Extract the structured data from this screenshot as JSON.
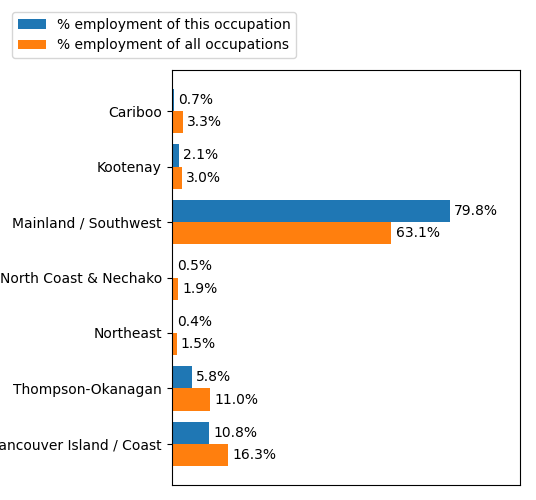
{
  "chart_data": {
    "type": "bar",
    "orientation": "horizontal",
    "categories": [
      "Cariboo",
      "Kootenay",
      "Mainland / Southwest",
      "North Coast & Nechako",
      "Northeast",
      "Thompson-Okanagan",
      "Vancouver Island / Coast"
    ],
    "series": [
      {
        "name": "% employment of this occupation",
        "values": [
          0.7,
          2.1,
          79.8,
          0.5,
          0.4,
          5.8,
          10.8
        ],
        "value_labels": [
          "0.7%",
          "2.1%",
          "79.8%",
          "0.5%",
          "0.4%",
          "5.8%",
          "10.8%"
        ]
      },
      {
        "name": "% employment of all occupations",
        "values": [
          3.3,
          3.0,
          63.1,
          1.9,
          1.5,
          11.0,
          16.3
        ],
        "value_labels": [
          "3.3%",
          "3.0%",
          "63.1%",
          "1.9%",
          "1.5%",
          "11.0%",
          "16.3%"
        ]
      }
    ],
    "xlim": [
      0,
      100.0
    ],
    "data_labels": true,
    "tick_labels": "y",
    "legend": "upper left"
  }
}
